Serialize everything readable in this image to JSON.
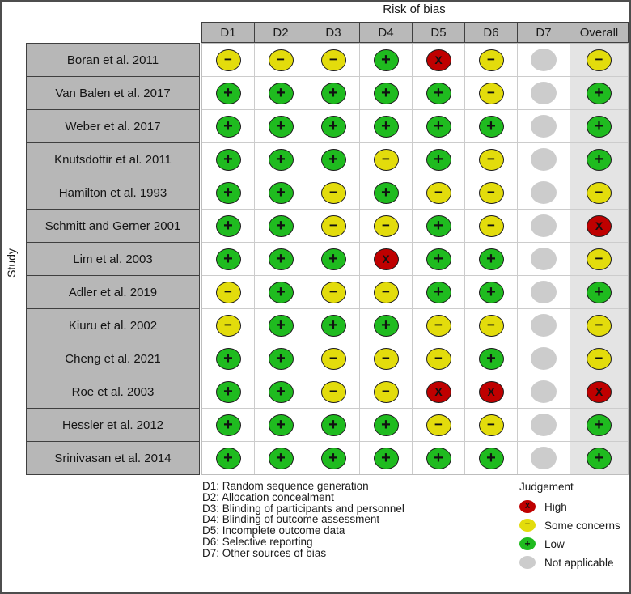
{
  "chart_data": {
    "type": "heatmap",
    "subtype": "risk-of-bias-traffic-light",
    "title": "Risk of bias",
    "ylabel": "Study",
    "columns": [
      "D1",
      "D2",
      "D3",
      "D4",
      "D5",
      "D6",
      "D7",
      "Overall"
    ],
    "rows": [
      {
        "study": "Boran et al. 2011",
        "values": [
          "some_concerns",
          "some_concerns",
          "some_concerns",
          "low",
          "high",
          "some_concerns",
          "not_applicable",
          "some_concerns"
        ]
      },
      {
        "study": "Van Balen et al. 2017",
        "values": [
          "low",
          "low",
          "low",
          "low",
          "low",
          "some_concerns",
          "not_applicable",
          "low"
        ]
      },
      {
        "study": "Weber et al. 2017",
        "values": [
          "low",
          "low",
          "low",
          "low",
          "low",
          "low",
          "not_applicable",
          "low"
        ]
      },
      {
        "study": "Knutsdottir et al. 2011",
        "values": [
          "low",
          "low",
          "low",
          "some_concerns",
          "low",
          "some_concerns",
          "not_applicable",
          "low"
        ]
      },
      {
        "study": "Hamilton et al. 1993",
        "values": [
          "low",
          "low",
          "some_concerns",
          "low",
          "some_concerns",
          "some_concerns",
          "not_applicable",
          "some_concerns"
        ]
      },
      {
        "study": "Schmitt and Gerner 2001",
        "values": [
          "low",
          "low",
          "some_concerns",
          "some_concerns",
          "low",
          "some_concerns",
          "not_applicable",
          "high"
        ]
      },
      {
        "study": "Lim et al. 2003",
        "values": [
          "low",
          "low",
          "low",
          "high",
          "low",
          "low",
          "not_applicable",
          "some_concerns"
        ]
      },
      {
        "study": "Adler et al. 2019",
        "values": [
          "some_concerns",
          "low",
          "some_concerns",
          "some_concerns",
          "low",
          "low",
          "not_applicable",
          "low"
        ]
      },
      {
        "study": "Kiuru et al. 2002",
        "values": [
          "some_concerns",
          "low",
          "low",
          "low",
          "some_concerns",
          "some_concerns",
          "not_applicable",
          "some_concerns"
        ]
      },
      {
        "study": "Cheng et al. 2021",
        "values": [
          "low",
          "low",
          "some_concerns",
          "some_concerns",
          "some_concerns",
          "low",
          "not_applicable",
          "some_concerns"
        ]
      },
      {
        "study": "Roe et al. 2003",
        "values": [
          "low",
          "low",
          "some_concerns",
          "some_concerns",
          "high",
          "high",
          "not_applicable",
          "high"
        ]
      },
      {
        "study": "Hessler et al. 2012",
        "values": [
          "low",
          "low",
          "low",
          "low",
          "some_concerns",
          "some_concerns",
          "not_applicable",
          "low"
        ]
      },
      {
        "study": "Srinivasan et al. 2014",
        "values": [
          "low",
          "low",
          "low",
          "low",
          "low",
          "low",
          "not_applicable",
          "low"
        ]
      }
    ],
    "domain_notes": [
      "D1: Random sequence generation",
      "D2: Allocation concealment",
      "D3: Blinding of participants and personnel",
      "D4: Blinding of outcome assessment",
      "D5: Incomplete outcome data",
      "D6: Selective reporting",
      "D7: Other sources of bias"
    ],
    "legend": {
      "title": "Judgement",
      "entries": [
        {
          "value": "high",
          "label": "High"
        },
        {
          "value": "some_concerns",
          "label": "Some concerns"
        },
        {
          "value": "low",
          "label": "Low"
        },
        {
          "value": "not_applicable",
          "label": "Not applicable"
        }
      ]
    },
    "colors": {
      "high": "#BF0000",
      "some_concerns": "#E3DC0C",
      "low": "#1FBB1F",
      "not_applicable": "#CCCCCC",
      "outline": "#1c1c1c",
      "header_fill": "#B9B9B9",
      "overall_column_fill": "#E4E4E4"
    },
    "symbols": {
      "high": "X",
      "some_concerns": "−",
      "low": "+",
      "not_applicable": ""
    }
  }
}
